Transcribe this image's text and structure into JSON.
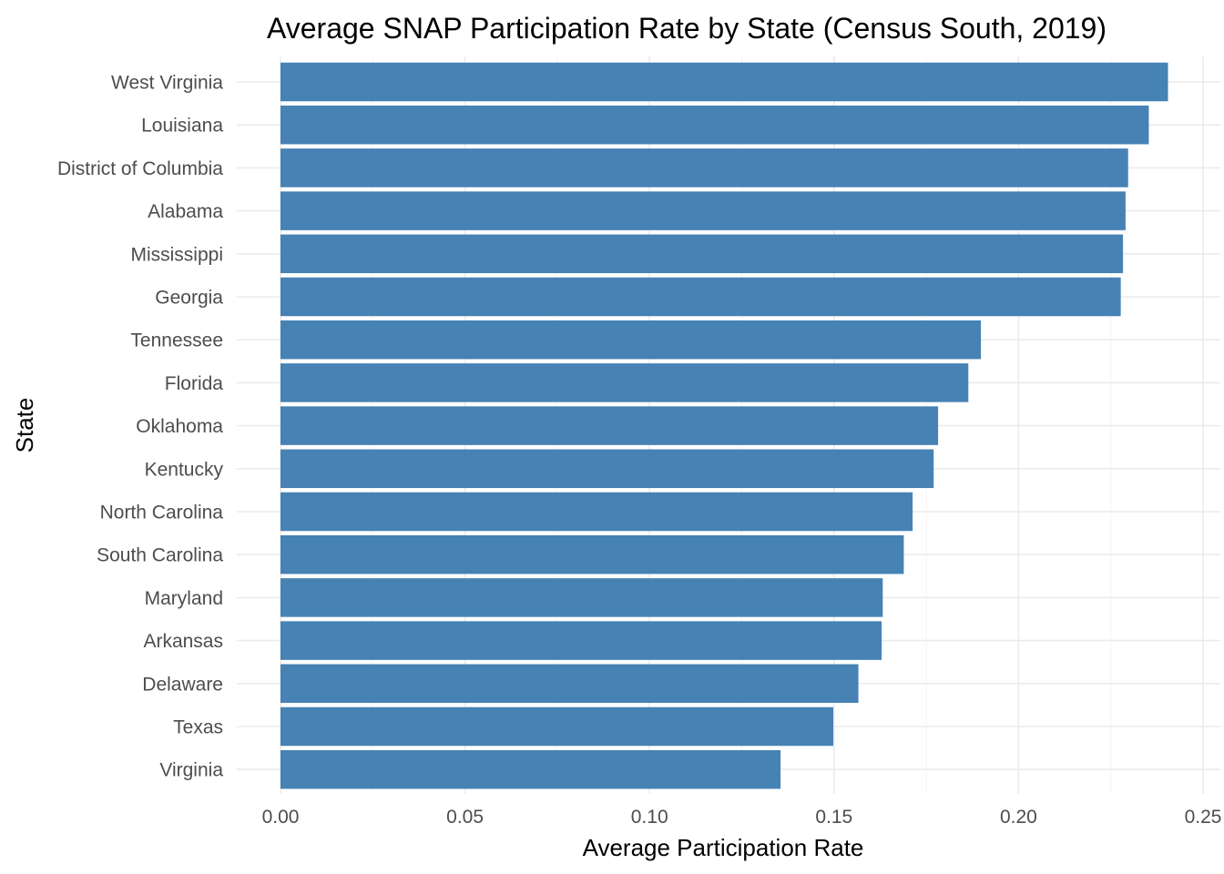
{
  "chart_data": {
    "type": "bar",
    "orientation": "horizontal",
    "title": "Average SNAP Participation Rate by State (Census South, 2019)",
    "xlabel": "Average Participation Rate",
    "ylabel": "State",
    "categories": [
      "West Virginia",
      "Louisiana",
      "District of Columbia",
      "Alabama",
      "Mississippi",
      "Georgia",
      "Tennessee",
      "Florida",
      "Oklahoma",
      "Kentucky",
      "North Carolina",
      "South Carolina",
      "Maryland",
      "Arkansas",
      "Delaware",
      "Texas",
      "Virginia"
    ],
    "values": [
      0.2405,
      0.2353,
      0.2297,
      0.229,
      0.2283,
      0.2277,
      0.1898,
      0.1864,
      0.1782,
      0.177,
      0.1713,
      0.1689,
      0.1632,
      0.1629,
      0.1566,
      0.1498,
      0.1355
    ],
    "xlim": [
      0,
      0.25
    ],
    "xticks": [
      "0.00",
      "0.05",
      "0.10",
      "0.15",
      "0.20",
      "0.25"
    ],
    "grid": true,
    "bar_color": "#4682b4"
  }
}
